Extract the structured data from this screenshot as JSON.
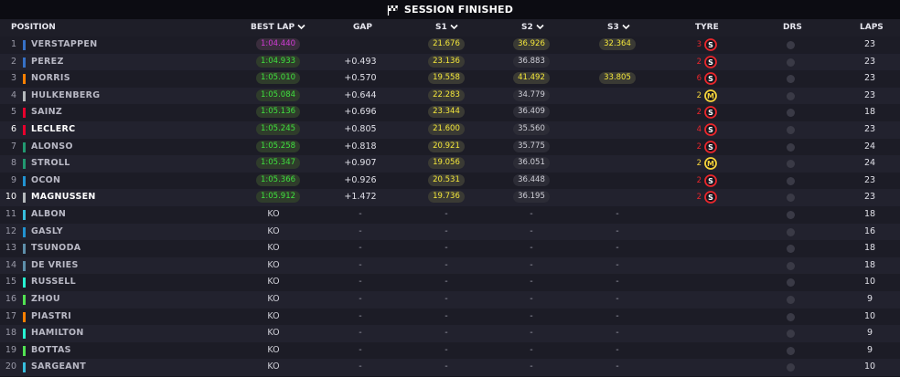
{
  "title": "SESSION FINISHED",
  "columns": {
    "position": "POSITION",
    "best_lap": "BEST LAP",
    "gap": "GAP",
    "s1": "S1",
    "s2": "S2",
    "s3": "S3",
    "tyre": "TYRE",
    "drs": "DRS",
    "laps": "LAPS"
  },
  "colors": {
    "best_overall": "#d33bd8",
    "personal_best": "#3fe03f",
    "sector_yellow": "#f4e73b",
    "soft_tyre": "#e8262b",
    "medium_tyre": "#f4d23b"
  },
  "rows": [
    {
      "pos": "1",
      "driver": "VERSTAPPEN",
      "team_color": "#3671c6",
      "best_lap": "1:04.440",
      "best_lap_style": "purple",
      "gap": "",
      "s1": "21.676",
      "s1_style": "yellow",
      "s2": "36.926",
      "s2_style": "yellow",
      "s3": "32.364",
      "s3_style": "yellow",
      "tyre_laps": "3",
      "tyre": "S",
      "laps": "23",
      "bright": false
    },
    {
      "pos": "2",
      "driver": "PEREZ",
      "team_color": "#3671c6",
      "best_lap": "1:04.933",
      "best_lap_style": "green",
      "gap": "+0.493",
      "s1": "23.136",
      "s1_style": "yellow",
      "s2": "36.883",
      "s2_style": "plain",
      "s3": "",
      "s3_style": "",
      "tyre_laps": "2",
      "tyre": "S",
      "laps": "23",
      "bright": false
    },
    {
      "pos": "3",
      "driver": "NORRIS",
      "team_color": "#ff8000",
      "best_lap": "1:05.010",
      "best_lap_style": "green",
      "gap": "+0.570",
      "s1": "19.558",
      "s1_style": "yellow",
      "s2": "41.492",
      "s2_style": "yellow",
      "s3": "33.805",
      "s3_style": "yellow",
      "tyre_laps": "6",
      "tyre": "S",
      "laps": "23",
      "bright": false
    },
    {
      "pos": "4",
      "driver": "HULKENBERG",
      "team_color": "#b6babd",
      "best_lap": "1:05.084",
      "best_lap_style": "green",
      "gap": "+0.644",
      "s1": "22.283",
      "s1_style": "yellow",
      "s2": "34.779",
      "s2_style": "plain",
      "s3": "",
      "s3_style": "",
      "tyre_laps": "2",
      "tyre": "M",
      "laps": "23",
      "bright": false
    },
    {
      "pos": "5",
      "driver": "SAINZ",
      "team_color": "#e8002d",
      "best_lap": "1:05.136",
      "best_lap_style": "green",
      "gap": "+0.696",
      "s1": "23.344",
      "s1_style": "yellow",
      "s2": "36.409",
      "s2_style": "plain",
      "s3": "",
      "s3_style": "",
      "tyre_laps": "2",
      "tyre": "S",
      "laps": "18",
      "bright": false
    },
    {
      "pos": "6",
      "driver": "LECLERC",
      "team_color": "#e8002d",
      "best_lap": "1:05.245",
      "best_lap_style": "green",
      "gap": "+0.805",
      "s1": "21.600",
      "s1_style": "yellow",
      "s2": "35.560",
      "s2_style": "plain",
      "s3": "",
      "s3_style": "",
      "tyre_laps": "4",
      "tyre": "S",
      "laps": "23",
      "bright": true
    },
    {
      "pos": "7",
      "driver": "ALONSO",
      "team_color": "#229971",
      "best_lap": "1:05.258",
      "best_lap_style": "green",
      "gap": "+0.818",
      "s1": "20.921",
      "s1_style": "yellow",
      "s2": "35.775",
      "s2_style": "plain",
      "s3": "",
      "s3_style": "",
      "tyre_laps": "2",
      "tyre": "S",
      "laps": "24",
      "bright": false
    },
    {
      "pos": "8",
      "driver": "STROLL",
      "team_color": "#229971",
      "best_lap": "1:05.347",
      "best_lap_style": "green",
      "gap": "+0.907",
      "s1": "19.056",
      "s1_style": "yellow",
      "s2": "36.051",
      "s2_style": "plain",
      "s3": "",
      "s3_style": "",
      "tyre_laps": "2",
      "tyre": "M",
      "laps": "24",
      "bright": false
    },
    {
      "pos": "9",
      "driver": "OCON",
      "team_color": "#2293d1",
      "best_lap": "1:05.366",
      "best_lap_style": "green",
      "gap": "+0.926",
      "s1": "20.531",
      "s1_style": "yellow",
      "s2": "36.448",
      "s2_style": "plain",
      "s3": "",
      "s3_style": "",
      "tyre_laps": "2",
      "tyre": "S",
      "laps": "23",
      "bright": false
    },
    {
      "pos": "10",
      "driver": "MAGNUSSEN",
      "team_color": "#b6babd",
      "best_lap": "1:05.912",
      "best_lap_style": "green",
      "gap": "+1.472",
      "s1": "19.736",
      "s1_style": "yellow",
      "s2": "36.195",
      "s2_style": "plain",
      "s3": "",
      "s3_style": "",
      "tyre_laps": "2",
      "tyre": "S",
      "laps": "23",
      "bright": true
    },
    {
      "pos": "11",
      "driver": "ALBON",
      "team_color": "#37bedd",
      "best_lap": "KO",
      "gap": "-",
      "s1": "-",
      "s2": "-",
      "s3": "-",
      "laps": "18",
      "ko": true
    },
    {
      "pos": "12",
      "driver": "GASLY",
      "team_color": "#2293d1",
      "best_lap": "KO",
      "gap": "-",
      "s1": "-",
      "s2": "-",
      "s3": "-",
      "laps": "16",
      "ko": true
    },
    {
      "pos": "13",
      "driver": "TSUNODA",
      "team_color": "#5e8faa",
      "best_lap": "KO",
      "gap": "-",
      "s1": "-",
      "s2": "-",
      "s3": "-",
      "laps": "18",
      "ko": true
    },
    {
      "pos": "14",
      "driver": "DE VRIES",
      "team_color": "#5e8faa",
      "best_lap": "KO",
      "gap": "-",
      "s1": "-",
      "s2": "-",
      "s3": "-",
      "laps": "18",
      "ko": true
    },
    {
      "pos": "15",
      "driver": "RUSSELL",
      "team_color": "#27f4d2",
      "best_lap": "KO",
      "gap": "-",
      "s1": "-",
      "s2": "-",
      "s3": "-",
      "laps": "10",
      "ko": true
    },
    {
      "pos": "16",
      "driver": "ZHOU",
      "team_color": "#52e252",
      "best_lap": "KO",
      "gap": "-",
      "s1": "-",
      "s2": "-",
      "s3": "-",
      "laps": "9",
      "ko": true
    },
    {
      "pos": "17",
      "driver": "PIASTRI",
      "team_color": "#ff8000",
      "best_lap": "KO",
      "gap": "-",
      "s1": "-",
      "s2": "-",
      "s3": "-",
      "laps": "10",
      "ko": true
    },
    {
      "pos": "18",
      "driver": "HAMILTON",
      "team_color": "#27f4d2",
      "best_lap": "KO",
      "gap": "-",
      "s1": "-",
      "s2": "-",
      "s3": "-",
      "laps": "9",
      "ko": true
    },
    {
      "pos": "19",
      "driver": "BOTTAS",
      "team_color": "#52e252",
      "best_lap": "KO",
      "gap": "-",
      "s1": "-",
      "s2": "-",
      "s3": "-",
      "laps": "9",
      "ko": true
    },
    {
      "pos": "20",
      "driver": "SARGEANT",
      "team_color": "#37bedd",
      "best_lap": "KO",
      "gap": "-",
      "s1": "-",
      "s2": "-",
      "s3": "-",
      "laps": "10",
      "ko": true
    }
  ]
}
